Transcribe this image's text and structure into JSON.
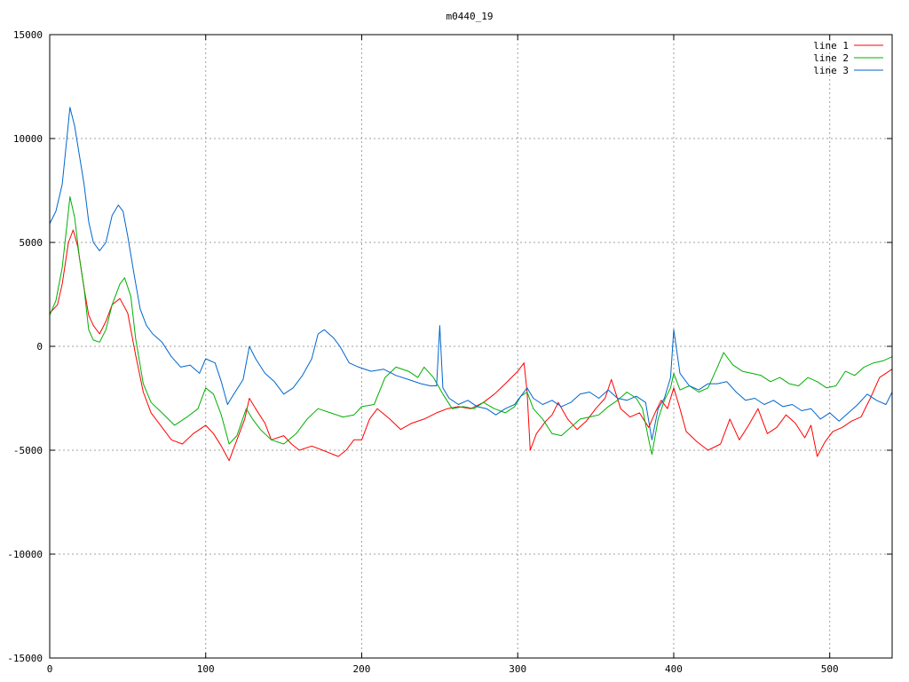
{
  "chart_data": {
    "type": "line",
    "title": "m0440_19",
    "xlabel": "",
    "ylabel": "",
    "xlim": [
      0,
      540
    ],
    "ylim": [
      -15000,
      15000
    ],
    "x_ticks": [
      0,
      100,
      200,
      300,
      400,
      500
    ],
    "y_ticks": [
      -15000,
      -10000,
      -5000,
      0,
      5000,
      10000,
      15000
    ],
    "grid": true,
    "legend_position": "top-right",
    "series": [
      {
        "name": "line 1",
        "color": "#ff0000",
        "points": [
          [
            0,
            1600
          ],
          [
            5,
            2000
          ],
          [
            8,
            3000
          ],
          [
            12,
            5000
          ],
          [
            15,
            5600
          ],
          [
            18,
            4800
          ],
          [
            22,
            2800
          ],
          [
            25,
            1500
          ],
          [
            28,
            1000
          ],
          [
            32,
            600
          ],
          [
            36,
            1200
          ],
          [
            40,
            2000
          ],
          [
            45,
            2300
          ],
          [
            50,
            1600
          ],
          [
            55,
            -400
          ],
          [
            60,
            -2200
          ],
          [
            65,
            -3200
          ],
          [
            70,
            -3700
          ],
          [
            78,
            -4500
          ],
          [
            85,
            -4700
          ],
          [
            92,
            -4200
          ],
          [
            100,
            -3800
          ],
          [
            105,
            -4200
          ],
          [
            110,
            -4800
          ],
          [
            115,
            -5500
          ],
          [
            120,
            -4500
          ],
          [
            125,
            -3500
          ],
          [
            128,
            -2500
          ],
          [
            132,
            -3000
          ],
          [
            138,
            -3700
          ],
          [
            142,
            -4500
          ],
          [
            150,
            -4300
          ],
          [
            155,
            -4700
          ],
          [
            160,
            -5000
          ],
          [
            168,
            -4800
          ],
          [
            175,
            -5000
          ],
          [
            185,
            -5300
          ],
          [
            190,
            -5000
          ],
          [
            195,
            -4500
          ],
          [
            200,
            -4500
          ],
          [
            205,
            -3500
          ],
          [
            210,
            -3000
          ],
          [
            218,
            -3500
          ],
          [
            225,
            -4000
          ],
          [
            232,
            -3700
          ],
          [
            240,
            -3500
          ],
          [
            248,
            -3200
          ],
          [
            255,
            -3000
          ],
          [
            262,
            -2900
          ],
          [
            270,
            -3000
          ],
          [
            278,
            -2700
          ],
          [
            285,
            -2300
          ],
          [
            292,
            -1800
          ],
          [
            300,
            -1200
          ],
          [
            304,
            -800
          ],
          [
            306,
            -2200
          ],
          [
            308,
            -5000
          ],
          [
            312,
            -4200
          ],
          [
            318,
            -3600
          ],
          [
            322,
            -3300
          ],
          [
            326,
            -2700
          ],
          [
            332,
            -3500
          ],
          [
            338,
            -4000
          ],
          [
            344,
            -3600
          ],
          [
            350,
            -3000
          ],
          [
            356,
            -2500
          ],
          [
            360,
            -1600
          ],
          [
            366,
            -3000
          ],
          [
            372,
            -3400
          ],
          [
            378,
            -3200
          ],
          [
            384,
            -3900
          ],
          [
            388,
            -3200
          ],
          [
            392,
            -2600
          ],
          [
            396,
            -3000
          ],
          [
            400,
            -2000
          ],
          [
            404,
            -3000
          ],
          [
            408,
            -4100
          ],
          [
            415,
            -4600
          ],
          [
            422,
            -5000
          ],
          [
            430,
            -4700
          ],
          [
            436,
            -3500
          ],
          [
            442,
            -4500
          ],
          [
            448,
            -3800
          ],
          [
            454,
            -3000
          ],
          [
            460,
            -4200
          ],
          [
            466,
            -3900
          ],
          [
            472,
            -3300
          ],
          [
            478,
            -3700
          ],
          [
            484,
            -4400
          ],
          [
            488,
            -3800
          ],
          [
            492,
            -5300
          ],
          [
            497,
            -4600
          ],
          [
            502,
            -4100
          ],
          [
            508,
            -3900
          ],
          [
            514,
            -3600
          ],
          [
            520,
            -3400
          ],
          [
            526,
            -2500
          ],
          [
            532,
            -1500
          ],
          [
            540,
            -1100
          ]
        ]
      },
      {
        "name": "line 2",
        "color": "#00b000",
        "points": [
          [
            0,
            1500
          ],
          [
            4,
            2200
          ],
          [
            8,
            3800
          ],
          [
            11,
            5800
          ],
          [
            13,
            7200
          ],
          [
            16,
            6200
          ],
          [
            19,
            4300
          ],
          [
            22,
            2800
          ],
          [
            25,
            800
          ],
          [
            28,
            300
          ],
          [
            32,
            200
          ],
          [
            36,
            800
          ],
          [
            40,
            2000
          ],
          [
            45,
            3000
          ],
          [
            48,
            3300
          ],
          [
            52,
            2400
          ],
          [
            55,
            400
          ],
          [
            60,
            -1800
          ],
          [
            65,
            -2700
          ],
          [
            72,
            -3200
          ],
          [
            80,
            -3800
          ],
          [
            88,
            -3400
          ],
          [
            95,
            -3000
          ],
          [
            100,
            -2000
          ],
          [
            105,
            -2300
          ],
          [
            110,
            -3300
          ],
          [
            115,
            -4700
          ],
          [
            120,
            -4300
          ],
          [
            126,
            -3000
          ],
          [
            130,
            -3500
          ],
          [
            135,
            -4000
          ],
          [
            142,
            -4500
          ],
          [
            150,
            -4700
          ],
          [
            158,
            -4200
          ],
          [
            165,
            -3500
          ],
          [
            172,
            -3000
          ],
          [
            180,
            -3200
          ],
          [
            188,
            -3400
          ],
          [
            195,
            -3300
          ],
          [
            200,
            -2900
          ],
          [
            208,
            -2800
          ],
          [
            215,
            -1500
          ],
          [
            222,
            -1000
          ],
          [
            230,
            -1200
          ],
          [
            236,
            -1500
          ],
          [
            240,
            -1000
          ],
          [
            246,
            -1500
          ],
          [
            252,
            -2300
          ],
          [
            258,
            -3000
          ],
          [
            265,
            -2900
          ],
          [
            272,
            -3000
          ],
          [
            278,
            -2700
          ],
          [
            285,
            -3000
          ],
          [
            292,
            -3200
          ],
          [
            298,
            -2900
          ],
          [
            302,
            -2400
          ],
          [
            306,
            -2200
          ],
          [
            310,
            -3000
          ],
          [
            316,
            -3500
          ],
          [
            322,
            -4200
          ],
          [
            328,
            -4300
          ],
          [
            334,
            -3900
          ],
          [
            340,
            -3500
          ],
          [
            346,
            -3400
          ],
          [
            352,
            -3300
          ],
          [
            358,
            -2900
          ],
          [
            364,
            -2600
          ],
          [
            370,
            -2200
          ],
          [
            376,
            -2500
          ],
          [
            380,
            -3000
          ],
          [
            384,
            -4500
          ],
          [
            386,
            -5200
          ],
          [
            390,
            -3500
          ],
          [
            394,
            -2600
          ],
          [
            398,
            -2000
          ],
          [
            400,
            -1300
          ],
          [
            404,
            -2100
          ],
          [
            410,
            -1900
          ],
          [
            416,
            -2200
          ],
          [
            422,
            -2000
          ],
          [
            428,
            -1000
          ],
          [
            432,
            -300
          ],
          [
            438,
            -900
          ],
          [
            444,
            -1200
          ],
          [
            450,
            -1300
          ],
          [
            456,
            -1400
          ],
          [
            462,
            -1700
          ],
          [
            468,
            -1500
          ],
          [
            474,
            -1800
          ],
          [
            480,
            -1900
          ],
          [
            486,
            -1500
          ],
          [
            492,
            -1700
          ],
          [
            498,
            -2000
          ],
          [
            504,
            -1900
          ],
          [
            510,
            -1200
          ],
          [
            516,
            -1400
          ],
          [
            522,
            -1000
          ],
          [
            528,
            -800
          ],
          [
            534,
            -700
          ],
          [
            540,
            -500
          ]
        ]
      },
      {
        "name": "line 3",
        "color": "#0066cc",
        "points": [
          [
            0,
            5900
          ],
          [
            4,
            6500
          ],
          [
            8,
            7800
          ],
          [
            11,
            10000
          ],
          [
            13,
            11500
          ],
          [
            16,
            10600
          ],
          [
            19,
            9200
          ],
          [
            22,
            7800
          ],
          [
            25,
            6000
          ],
          [
            28,
            5000
          ],
          [
            32,
            4600
          ],
          [
            36,
            5000
          ],
          [
            40,
            6300
          ],
          [
            44,
            6800
          ],
          [
            47,
            6500
          ],
          [
            50,
            5300
          ],
          [
            54,
            3500
          ],
          [
            58,
            1800
          ],
          [
            62,
            1000
          ],
          [
            66,
            600
          ],
          [
            72,
            200
          ],
          [
            78,
            -500
          ],
          [
            84,
            -1000
          ],
          [
            90,
            -900
          ],
          [
            96,
            -1300
          ],
          [
            100,
            -600
          ],
          [
            106,
            -800
          ],
          [
            110,
            -1700
          ],
          [
            114,
            -2800
          ],
          [
            118,
            -2300
          ],
          [
            124,
            -1600
          ],
          [
            128,
            0
          ],
          [
            132,
            -600
          ],
          [
            138,
            -1300
          ],
          [
            144,
            -1700
          ],
          [
            150,
            -2300
          ],
          [
            156,
            -2000
          ],
          [
            162,
            -1400
          ],
          [
            168,
            -600
          ],
          [
            172,
            600
          ],
          [
            176,
            800
          ],
          [
            182,
            400
          ],
          [
            186,
            0
          ],
          [
            192,
            -800
          ],
          [
            198,
            -1000
          ],
          [
            206,
            -1200
          ],
          [
            214,
            -1100
          ],
          [
            222,
            -1400
          ],
          [
            230,
            -1600
          ],
          [
            238,
            -1800
          ],
          [
            244,
            -1900
          ],
          [
            248,
            -1900
          ],
          [
            250,
            1000
          ],
          [
            252,
            -2000
          ],
          [
            256,
            -2500
          ],
          [
            262,
            -2800
          ],
          [
            268,
            -2600
          ],
          [
            274,
            -2900
          ],
          [
            280,
            -3000
          ],
          [
            286,
            -3300
          ],
          [
            292,
            -3000
          ],
          [
            298,
            -2800
          ],
          [
            302,
            -2400
          ],
          [
            306,
            -2000
          ],
          [
            310,
            -2500
          ],
          [
            316,
            -2800
          ],
          [
            322,
            -2600
          ],
          [
            328,
            -2900
          ],
          [
            334,
            -2700
          ],
          [
            340,
            -2300
          ],
          [
            346,
            -2200
          ],
          [
            352,
            -2500
          ],
          [
            358,
            -2100
          ],
          [
            364,
            -2500
          ],
          [
            370,
            -2600
          ],
          [
            376,
            -2400
          ],
          [
            382,
            -2700
          ],
          [
            386,
            -4500
          ],
          [
            390,
            -3000
          ],
          [
            394,
            -2500
          ],
          [
            398,
            -1500
          ],
          [
            400,
            800
          ],
          [
            404,
            -1300
          ],
          [
            410,
            -1900
          ],
          [
            416,
            -2100
          ],
          [
            422,
            -1800
          ],
          [
            428,
            -1800
          ],
          [
            434,
            -1700
          ],
          [
            440,
            -2200
          ],
          [
            446,
            -2600
          ],
          [
            452,
            -2500
          ],
          [
            458,
            -2800
          ],
          [
            464,
            -2600
          ],
          [
            470,
            -2900
          ],
          [
            476,
            -2800
          ],
          [
            482,
            -3100
          ],
          [
            488,
            -3000
          ],
          [
            494,
            -3500
          ],
          [
            500,
            -3200
          ],
          [
            506,
            -3600
          ],
          [
            512,
            -3200
          ],
          [
            518,
            -2800
          ],
          [
            524,
            -2300
          ],
          [
            530,
            -2600
          ],
          [
            536,
            -2800
          ],
          [
            540,
            -2200
          ]
        ]
      }
    ]
  }
}
